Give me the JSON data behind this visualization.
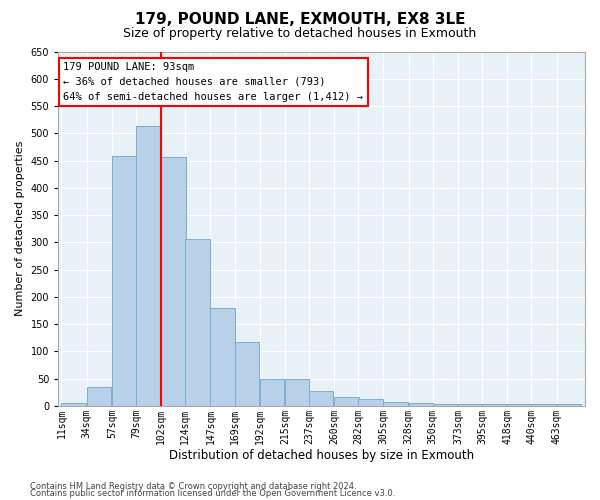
{
  "title": "179, POUND LANE, EXMOUTH, EX8 3LE",
  "subtitle": "Size of property relative to detached houses in Exmouth",
  "xlabel": "Distribution of detached houses by size in Exmouth",
  "ylabel": "Number of detached properties",
  "bar_color": "#b8d0e8",
  "bar_edge_color": "#7aaed0",
  "background_color": "#e8f0f8",
  "grid_color": "#ffffff",
  "annotation_text": "179 POUND LANE: 93sqm\n← 36% of detached houses are smaller (793)\n64% of semi-detached houses are larger (1,412) →",
  "vline_x": 102,
  "vline_color": "red",
  "footer1": "Contains HM Land Registry data © Crown copyright and database right 2024.",
  "footer2": "Contains public sector information licensed under the Open Government Licence v3.0.",
  "categories": [
    "11sqm",
    "34sqm",
    "57sqm",
    "79sqm",
    "102sqm",
    "124sqm",
    "147sqm",
    "169sqm",
    "192sqm",
    "215sqm",
    "237sqm",
    "260sqm",
    "282sqm",
    "305sqm",
    "328sqm",
    "350sqm",
    "373sqm",
    "395sqm",
    "418sqm",
    "440sqm",
    "463sqm"
  ],
  "bin_edges": [
    11,
    34,
    57,
    79,
    102,
    124,
    147,
    169,
    192,
    215,
    237,
    260,
    282,
    305,
    328,
    350,
    373,
    395,
    418,
    440,
    463
  ],
  "bin_width": 23,
  "values": [
    5,
    35,
    458,
    513,
    457,
    307,
    180,
    118,
    50,
    50,
    28,
    17,
    13,
    8,
    6,
    4,
    4,
    3,
    4,
    3,
    3
  ],
  "ylim": [
    0,
    650
  ],
  "yticks": [
    0,
    50,
    100,
    150,
    200,
    250,
    300,
    350,
    400,
    450,
    500,
    550,
    600,
    650
  ],
  "title_fontsize": 11,
  "subtitle_fontsize": 9,
  "ylabel_fontsize": 8,
  "xlabel_fontsize": 8.5,
  "tick_fontsize": 7,
  "annotation_fontsize": 7.5,
  "footer_fontsize": 6
}
